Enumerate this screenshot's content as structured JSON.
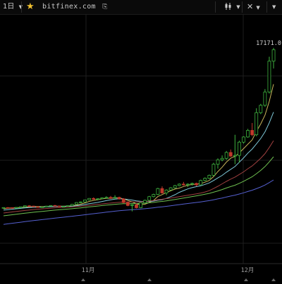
{
  "toolbar": {
    "timeframe_label": "1日",
    "timeframe_icon": "chevron-down-icon",
    "favorite_icon": "star-icon",
    "favorite_color": "#f2c230",
    "site_label": "bitfinex.com",
    "site_icon": "link-icon",
    "indicators_icon": "candlestick-icon",
    "drawing_icon": "drawing-tools-icon",
    "more_icon": "chevron-down-icon"
  },
  "chart_data": {
    "type": "candlestick",
    "price_label": "17171.0",
    "x_tick_labels": [
      "11月",
      "12月"
    ],
    "grid": true,
    "up_color": "#3fb43f",
    "down_color": "#c0392b",
    "candles": [
      [
        6450,
        6470,
        6430,
        6460
      ],
      [
        6460,
        6480,
        6440,
        6455
      ],
      [
        6455,
        6470,
        6420,
        6440
      ],
      [
        6440,
        6480,
        6430,
        6470
      ],
      [
        6470,
        6520,
        6460,
        6510
      ],
      [
        6510,
        6600,
        6490,
        6580
      ],
      [
        6580,
        6620,
        6540,
        6560
      ],
      [
        6560,
        6580,
        6500,
        6510
      ],
      [
        6510,
        6530,
        6470,
        6480
      ],
      [
        6480,
        6520,
        6470,
        6505
      ],
      [
        6505,
        6580,
        6500,
        6560
      ],
      [
        6560,
        6620,
        6550,
        6600
      ],
      [
        6600,
        6640,
        6560,
        6570
      ],
      [
        6570,
        6580,
        6510,
        6520
      ],
      [
        6520,
        6560,
        6500,
        6540
      ],
      [
        6540,
        6600,
        6530,
        6590
      ],
      [
        6590,
        6700,
        6580,
        6680
      ],
      [
        6680,
        6820,
        6660,
        6800
      ],
      [
        6800,
        6880,
        6760,
        6840
      ],
      [
        6840,
        7000,
        6820,
        6980
      ],
      [
        6980,
        7100,
        6950,
        7080
      ],
      [
        7080,
        7150,
        7000,
        7020
      ],
      [
        7020,
        7080,
        6950,
        7060
      ],
      [
        7060,
        7150,
        7040,
        7120
      ],
      [
        7120,
        7220,
        7100,
        7150
      ],
      [
        7150,
        7250,
        7050,
        7100
      ],
      [
        7100,
        7300,
        7080,
        7150
      ],
      [
        7150,
        7200,
        7000,
        7050
      ],
      [
        7050,
        7100,
        6750,
        6800
      ],
      [
        6800,
        6850,
        6550,
        6600
      ],
      [
        6600,
        6700,
        6200,
        6650
      ],
      [
        6650,
        6750,
        6400,
        6450
      ],
      [
        6450,
        6800,
        6420,
        6780
      ],
      [
        6780,
        7000,
        6760,
        6950
      ],
      [
        6950,
        7250,
        6900,
        7200
      ],
      [
        7200,
        7400,
        7150,
        7350
      ],
      [
        7350,
        7800,
        7300,
        7750
      ],
      [
        7750,
        7900,
        7400,
        7450
      ],
      [
        7450,
        7700,
        7300,
        7650
      ],
      [
        7650,
        7850,
        7600,
        7800
      ],
      [
        7800,
        8000,
        7750,
        7950
      ],
      [
        7950,
        8100,
        7900,
        8050
      ],
      [
        8050,
        8200,
        7950,
        8000
      ],
      [
        8000,
        8100,
        7850,
        8050
      ],
      [
        8050,
        8150,
        7950,
        8100
      ],
      [
        8100,
        8150,
        7900,
        8000
      ],
      [
        8000,
        8350,
        7980,
        8300
      ],
      [
        8300,
        8500,
        8250,
        8450
      ],
      [
        8450,
        8700,
        8400,
        8650
      ],
      [
        8650,
        9500,
        8600,
        9400
      ],
      [
        9400,
        9800,
        9100,
        9700
      ],
      [
        9700,
        10000,
        9600,
        9800
      ],
      [
        9800,
        10300,
        9700,
        10200
      ],
      [
        10200,
        10400,
        9900,
        9950
      ],
      [
        9950,
        11400,
        9400,
        10000
      ],
      [
        10000,
        11000,
        9500,
        10900
      ],
      [
        10900,
        11300,
        10800,
        11250
      ],
      [
        11250,
        11800,
        11200,
        11700
      ],
      [
        11700,
        12200,
        11300,
        11400
      ],
      [
        11400,
        13200,
        11300,
        12900
      ],
      [
        12900,
        13500,
        12800,
        13400
      ],
      [
        13400,
        14500,
        13300,
        14300
      ],
      [
        14300,
        16700,
        14200,
        16400
      ],
      [
        16400,
        17300,
        15900,
        17171
      ]
    ],
    "moving_averages": [
      {
        "color": "#c8b45a",
        "period": 5
      },
      {
        "color": "#7ec8d8",
        "period": 10
      },
      {
        "color": "#a04040",
        "period": 20
      },
      {
        "color": "#6fc050",
        "period": 30
      },
      {
        "color": "#5560d0",
        "period": 60
      }
    ]
  }
}
